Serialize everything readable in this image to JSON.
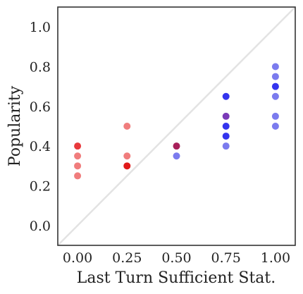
{
  "chart_data": {
    "type": "scatter",
    "xlabel": "Last Turn Sufficient Stat.",
    "ylabel": "Popularity",
    "xlim": [
      -0.1,
      1.1
    ],
    "ylim": [
      -0.1,
      1.1
    ],
    "x_ticks": [
      "0.00",
      "0.25",
      "0.50",
      "0.75",
      "1.00"
    ],
    "x_tick_values": [
      0,
      0.25,
      0.5,
      0.75,
      1.0
    ],
    "y_ticks": [
      "0.0",
      "0.2",
      "0.4",
      "0.6",
      "0.8",
      "1.0"
    ],
    "y_tick_values": [
      0,
      0.2,
      0.4,
      0.6,
      0.8,
      1.0
    ],
    "grid": false,
    "reference_line": "y = x",
    "reference_line_color": "#e3e3e3",
    "points": [
      {
        "x": 0.0,
        "y": 0.4,
        "color": "#e8393c"
      },
      {
        "x": 0.0,
        "y": 0.35,
        "color": "#f07d7d"
      },
      {
        "x": 0.0,
        "y": 0.3,
        "color": "#f07d7d"
      },
      {
        "x": 0.0,
        "y": 0.25,
        "color": "#f07d7d"
      },
      {
        "x": 0.25,
        "y": 0.5,
        "color": "#f07d7d"
      },
      {
        "x": 0.25,
        "y": 0.35,
        "color": "#f07d7d"
      },
      {
        "x": 0.25,
        "y": 0.3,
        "color": "#e01a1a"
      },
      {
        "x": 0.5,
        "y": 0.4,
        "color": "#a8205a"
      },
      {
        "x": 0.5,
        "y": 0.35,
        "color": "#7b7bee"
      },
      {
        "x": 0.75,
        "y": 0.65,
        "color": "#3434ee"
      },
      {
        "x": 0.75,
        "y": 0.55,
        "color": "#7a3ab8"
      },
      {
        "x": 0.75,
        "y": 0.5,
        "color": "#3434ee"
      },
      {
        "x": 0.75,
        "y": 0.45,
        "color": "#3434ee"
      },
      {
        "x": 0.75,
        "y": 0.4,
        "color": "#7b7bee"
      },
      {
        "x": 1.0,
        "y": 0.8,
        "color": "#7b7bee"
      },
      {
        "x": 1.0,
        "y": 0.75,
        "color": "#7b7bee"
      },
      {
        "x": 1.0,
        "y": 0.7,
        "color": "#3434ee"
      },
      {
        "x": 1.0,
        "y": 0.65,
        "color": "#7b7bee"
      },
      {
        "x": 1.0,
        "y": 0.55,
        "color": "#7b7bee"
      },
      {
        "x": 1.0,
        "y": 0.5,
        "color": "#7b7bee"
      }
    ]
  }
}
